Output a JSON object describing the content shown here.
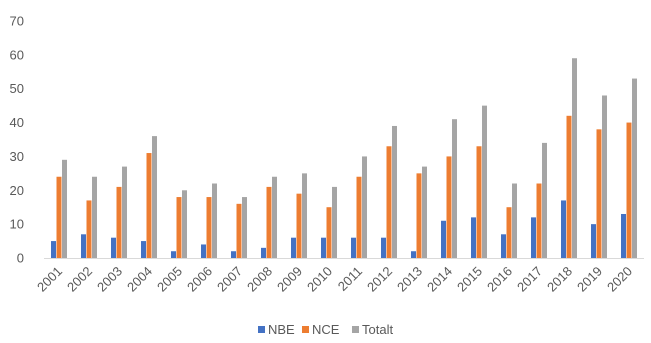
{
  "chart_data": {
    "type": "bar",
    "categories": [
      "2001",
      "2002",
      "2003",
      "2004",
      "2005",
      "2006",
      "2007",
      "2008",
      "2009",
      "2010",
      "2011",
      "2012",
      "2013",
      "2014",
      "2015",
      "2016",
      "2017",
      "2018",
      "2019",
      "2020"
    ],
    "series": [
      {
        "name": "NBE",
        "color": "#4472c4",
        "values": [
          5,
          7,
          6,
          5,
          2,
          4,
          2,
          3,
          6,
          6,
          6,
          6,
          2,
          11,
          12,
          7,
          12,
          17,
          10,
          13
        ]
      },
      {
        "name": "NCE",
        "color": "#ed7d31",
        "values": [
          24,
          17,
          21,
          31,
          18,
          18,
          16,
          21,
          19,
          15,
          24,
          33,
          25,
          30,
          33,
          15,
          22,
          42,
          38,
          40
        ]
      },
      {
        "name": "Totalt",
        "color": "#a5a5a5",
        "values": [
          29,
          24,
          27,
          36,
          20,
          22,
          18,
          24,
          25,
          21,
          30,
          39,
          27,
          41,
          45,
          22,
          34,
          59,
          48,
          53
        ]
      }
    ],
    "ylim": [
      0,
      70
    ],
    "yticks": [
      0,
      10,
      20,
      30,
      40,
      50,
      60,
      70
    ],
    "grid": false,
    "legend_position": "bottom",
    "title": "",
    "xlabel": "",
    "ylabel": ""
  }
}
